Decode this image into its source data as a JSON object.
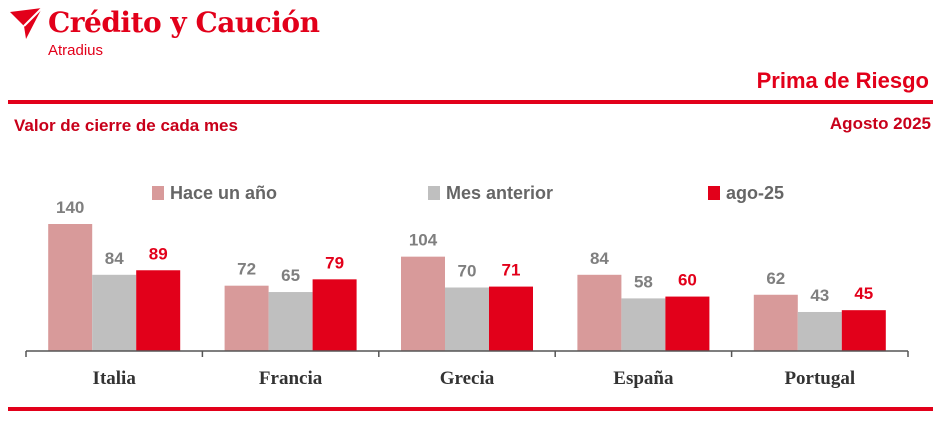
{
  "brand": {
    "name": "Crédito y Caución",
    "subname": "Atradius"
  },
  "header": {
    "title": "Prima de Riesgo",
    "subtitle": "Valor de cierre de cada mes",
    "date": "Agosto 2025"
  },
  "colors": {
    "accent": "#e2001a",
    "series": [
      "#d89a9a",
      "#bfbfbf",
      "#e2001a"
    ]
  },
  "chart_data": {
    "type": "bar",
    "categories": [
      "Italia",
      "Francia",
      "Grecia",
      "España",
      "Portugal"
    ],
    "series": [
      {
        "name": "Hace un año",
        "values": [
          140,
          72,
          104,
          84,
          62
        ],
        "color": "#d89a9a",
        "label_color": "#7f7f7f"
      },
      {
        "name": "Mes anterior",
        "values": [
          84,
          65,
          70,
          58,
          43
        ],
        "color": "#bfbfbf",
        "label_color": "#7f7f7f"
      },
      {
        "name": "ago-25",
        "values": [
          89,
          79,
          71,
          60,
          45
        ],
        "color": "#e2001a",
        "label_color": "#e2001a"
      }
    ],
    "ylim": [
      0,
      140
    ],
    "legend": "top",
    "grid": false,
    "title": "Prima de Riesgo",
    "xlabel": "",
    "ylabel": ""
  }
}
